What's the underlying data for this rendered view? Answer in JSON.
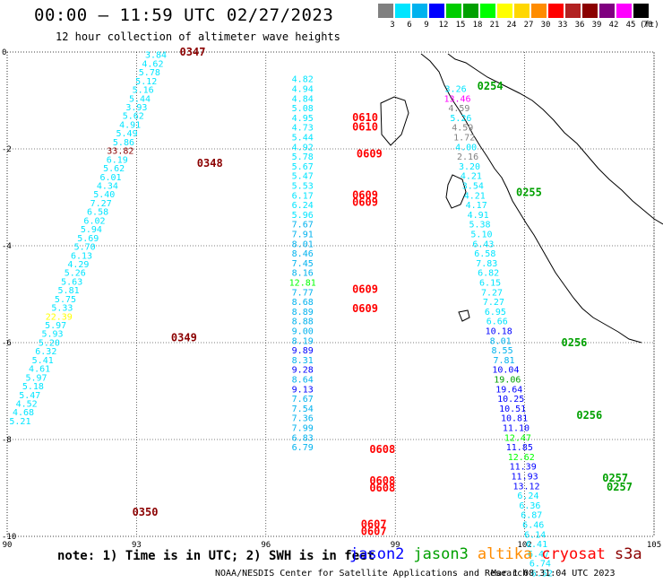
{
  "header": {
    "title": "00:00 – 11:59 UTC 02/27/2023",
    "subtitle": "12 hour collection of altimeter wave heights"
  },
  "legend": {
    "labels": [
      "3",
      "6",
      "9",
      "12",
      "15",
      "18",
      "21",
      "24",
      "27",
      "30",
      "33",
      "36",
      "39",
      "42",
      "45",
      "70"
    ],
    "colors": [
      "#808080",
      "#00e5ff",
      "#00b2ee",
      "#0000ff",
      "#00cd00",
      "#00a000",
      "#00ff00",
      "#ffff00",
      "#ffd700",
      "#ff8c00",
      "#ff0000",
      "#b22222",
      "#8b0000",
      "#800080",
      "#ff00ff",
      "#000000"
    ],
    "units": "(ft)"
  },
  "axes": {
    "x_ticks": [
      "90",
      "93",
      "96",
      "99",
      "102",
      "105"
    ],
    "y_ticks": [
      "0",
      "-2",
      "-4",
      "-6",
      "-8",
      "-10"
    ]
  },
  "tracks": [
    {
      "lon": 93.45,
      "lat_start": -0.05,
      "lat_step": -0.18,
      "lon_step": -0.075,
      "values": [
        "3.84",
        "4.62",
        "5.78",
        "5.12",
        "5.16",
        "5.44",
        "3.93",
        "5.62",
        "4.91",
        "5.49",
        "5.86",
        "33.82",
        "6.19",
        "5.62",
        "6.01",
        "4.34",
        "5.40",
        "7.27",
        "6.58",
        "6.02",
        "5.94",
        "5.69",
        "5.70",
        "6.13",
        "4.29",
        "5.26",
        "5.63",
        "5.81",
        "5.75",
        "5.33",
        "22.39",
        "5.97",
        "5.93",
        "5.20",
        "6.32",
        "5.41",
        "4.61",
        "5.97",
        "5.18",
        "5.47",
        "4.52",
        "4.68",
        "5.21"
      ],
      "colors": [
        "#00e5ff",
        "#00e5ff",
        "#00e5ff",
        "#00e5ff",
        "#00e5ff",
        "#00e5ff",
        "#00e5ff",
        "#00e5ff",
        "#00e5ff",
        "#00e5ff",
        "#00e5ff",
        "#8b0000",
        "#00e5ff",
        "#00e5ff",
        "#00e5ff",
        "#00e5ff",
        "#00e5ff",
        "#00e5ff",
        "#00e5ff",
        "#00e5ff",
        "#00e5ff",
        "#00e5ff",
        "#00e5ff",
        "#00e5ff",
        "#00e5ff",
        "#00e5ff",
        "#00e5ff",
        "#00e5ff",
        "#00e5ff",
        "#00e5ff",
        "#ffff00",
        "#00e5ff",
        "#00e5ff",
        "#00e5ff",
        "#00e5ff",
        "#00e5ff",
        "#00e5ff",
        "#00e5ff",
        "#00e5ff",
        "#00e5ff",
        "#00e5ff",
        "#00e5ff",
        "#00e5ff"
      ]
    },
    {
      "lon": 96.85,
      "lat_start": -0.55,
      "lat_step": -0.2,
      "lon_step": 0.0,
      "values": [
        "4.82",
        "4.94",
        "4.84",
        "5.08",
        "4.95",
        "4.73",
        "5.44",
        "4.92",
        "5.78",
        "5.67",
        "5.47",
        "5.53",
        "6.17",
        "6.24",
        "5.96",
        "7.67",
        "7.91",
        "8.01",
        "8.46",
        "7.45",
        "8.16",
        "12.81",
        "7.77",
        "8.68",
        "8.89",
        "8.88",
        "9.00",
        "8.19",
        "9.89",
        "8.31",
        "9.28",
        "8.64",
        "9.13",
        "7.67",
        "7.54",
        "7.36",
        "7.99",
        "6.83",
        "6.79"
      ],
      "colors": [
        "#00e5ff",
        "#00e5ff",
        "#00e5ff",
        "#00e5ff",
        "#00e5ff",
        "#00e5ff",
        "#00e5ff",
        "#00e5ff",
        "#00e5ff",
        "#00e5ff",
        "#00e5ff",
        "#00e5ff",
        "#00e5ff",
        "#00e5ff",
        "#00e5ff",
        "#00b2ee",
        "#00b2ee",
        "#00b2ee",
        "#00b2ee",
        "#00b2ee",
        "#00b2ee",
        "#00ff00",
        "#00b2ee",
        "#00b2ee",
        "#00b2ee",
        "#00b2ee",
        "#00b2ee",
        "#00b2ee",
        "#0000ff",
        "#00b2ee",
        "#0000ff",
        "#00b2ee",
        "#0000ff",
        "#00b2ee",
        "#00b2ee",
        "#00b2ee",
        "#00b2ee",
        "#00b2ee",
        "#00b2ee"
      ]
    },
    {
      "lon": 100.4,
      "lat_start": -0.75,
      "lat_step": -0.2,
      "lon_step": 0.04,
      "values": [
        "3.26",
        "13.46",
        "4.59",
        "5.26",
        "4.59",
        "1.72",
        "4.00",
        "2.16",
        "3.20",
        "4.21",
        "3.54",
        "4.21",
        "4.17",
        "4.91",
        "5.38",
        "5.10",
        "6.43",
        "6.58",
        "7.83",
        "6.82",
        "6.15",
        "7.27",
        "7.27",
        "6.95",
        "6.66",
        "10.18",
        "8.01",
        "8.55",
        "7.81",
        "10.04",
        "19.06",
        "19.64",
        "10.25",
        "10.51",
        "10.81",
        "11.10",
        "12.47",
        "11.85",
        "12.62",
        "11.39",
        "11.93",
        "13.12",
        "6.24",
        "6.36",
        "6.87",
        "6.46",
        "6.14",
        "6.41",
        "6.47",
        "6.74",
        "6.52"
      ],
      "colors": [
        "#00e5ff",
        "#ff00ff",
        "#808080",
        "#00e5ff",
        "#808080",
        "#808080",
        "#00e5ff",
        "#808080",
        "#00e5ff",
        "#00e5ff",
        "#00e5ff",
        "#00e5ff",
        "#00e5ff",
        "#00e5ff",
        "#00e5ff",
        "#00e5ff",
        "#00e5ff",
        "#00e5ff",
        "#00e5ff",
        "#00e5ff",
        "#00e5ff",
        "#00e5ff",
        "#00e5ff",
        "#00e5ff",
        "#00e5ff",
        "#0000ff",
        "#00b2ee",
        "#00b2ee",
        "#00b2ee",
        "#0000ff",
        "#00a000",
        "#0000ff",
        "#0000ff",
        "#0000ff",
        "#0000ff",
        "#0000ff",
        "#00ff00",
        "#0000ff",
        "#00ff00",
        "#0000ff",
        "#0000ff",
        "#0000ff",
        "#00e5ff",
        "#00e5ff",
        "#00e5ff",
        "#00e5ff",
        "#00e5ff",
        "#00e5ff",
        "#00e5ff",
        "#00e5ff",
        "#00e5ff"
      ]
    }
  ],
  "time_labels": [
    {
      "text": "0347",
      "lon": 94.0,
      "lat": 0.0,
      "color": "#8b0000"
    },
    {
      "text": "0348",
      "lon": 94.4,
      "lat": -2.3,
      "color": "#8b0000"
    },
    {
      "text": "0349",
      "lon": 93.8,
      "lat": -5.9,
      "color": "#8b0000"
    },
    {
      "text": "0350",
      "lon": 92.9,
      "lat": -9.5,
      "color": "#8b0000"
    },
    {
      "text": "0610",
      "lon": 98.0,
      "lat": -1.35,
      "color": "#ff0000"
    },
    {
      "text": "0610",
      "lon": 98.0,
      "lat": -1.55,
      "color": "#ff0000"
    },
    {
      "text": "0609",
      "lon": 98.1,
      "lat": -2.1,
      "color": "#ff0000"
    },
    {
      "text": "0609",
      "lon": 98.0,
      "lat": -2.95,
      "color": "#ff0000"
    },
    {
      "text": "0609",
      "lon": 98.0,
      "lat": -3.1,
      "color": "#ff0000"
    },
    {
      "text": "0609",
      "lon": 98.0,
      "lat": -4.9,
      "color": "#ff0000"
    },
    {
      "text": "0609",
      "lon": 98.0,
      "lat": -5.3,
      "color": "#ff0000"
    },
    {
      "text": "0608",
      "lon": 98.4,
      "lat": -8.2,
      "color": "#ff0000"
    },
    {
      "text": "0608",
      "lon": 98.4,
      "lat": -8.85,
      "color": "#ff0000"
    },
    {
      "text": "0608",
      "lon": 98.4,
      "lat": -9.0,
      "color": "#ff0000"
    },
    {
      "text": "0607",
      "lon": 98.2,
      "lat": -9.75,
      "color": "#ff0000"
    },
    {
      "text": "0607",
      "lon": 98.2,
      "lat": -9.9,
      "color": "#ff0000"
    },
    {
      "text": "0254",
      "lon": 100.9,
      "lat": -0.7,
      "color": "#00a000"
    },
    {
      "text": "0255",
      "lon": 101.8,
      "lat": -2.9,
      "color": "#00a000"
    },
    {
      "text": "0256",
      "lon": 102.85,
      "lat": -6.0,
      "color": "#00a000"
    },
    {
      "text": "0256",
      "lon": 103.2,
      "lat": -7.5,
      "color": "#00a000"
    },
    {
      "text": "0257",
      "lon": 103.8,
      "lat": -8.8,
      "color": "#00a000"
    },
    {
      "text": "0257",
      "lon": 103.9,
      "lat": -8.98,
      "color": "#00a000"
    }
  ],
  "footer": {
    "note": "note: 1) Time is in UTC; 2) SWH is in feet",
    "satellites": [
      {
        "name": "jason2",
        "color": "#0000ff"
      },
      {
        "name": "jason3",
        "color": "#00a000"
      },
      {
        "name": "altika",
        "color": "#ff8c00"
      },
      {
        "name": "cryosat",
        "color": "#ff0000"
      },
      {
        "name": "s3a",
        "color": "#8b0000"
      }
    ],
    "credit": "NOAA/NESDIS Center for Satellite Applications and Research",
    "stamp": "Mar  1 08:31:04 UTC 2023"
  }
}
